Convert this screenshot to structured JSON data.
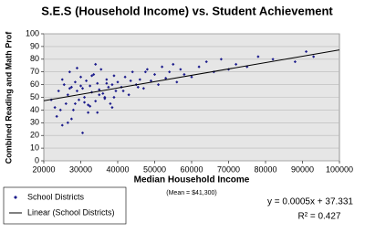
{
  "chart_data": {
    "type": "scatter",
    "title": "S.E.S (Household Income) vs. Student Achievement",
    "x_label": "Median Household Income",
    "y_label": "Combined Reading and Math Prof",
    "note": "(Mean = $41,300)",
    "annotations": [
      "y = 0.0005x + 37.331",
      "R² = 0.427"
    ],
    "xlim": [
      20000,
      100000
    ],
    "xticks": [
      20000,
      30000,
      40000,
      50000,
      60000,
      70000,
      80000,
      90000,
      100000
    ],
    "ylim": [
      0,
      100
    ],
    "yticks": [
      0,
      10,
      20,
      30,
      40,
      50,
      60,
      70,
      80,
      90,
      100
    ],
    "grid": true,
    "legend": "bottom-left",
    "series": [
      {
        "name": "School Districts",
        "color": "#1c1c8c",
        "kind": "points",
        "x": [
          22000,
          23500,
          24000,
          25000,
          25500,
          26000,
          26500,
          27000,
          27500,
          28000,
          28500,
          29000,
          29500,
          30000,
          30500,
          31000,
          31500,
          32000,
          32500,
          33000,
          33500,
          34000,
          34500,
          35000,
          35500,
          36000,
          36500,
          37000,
          37500,
          38000,
          38500,
          39000,
          39500,
          40000,
          41000,
          42000,
          43000,
          44000,
          45000,
          46000,
          47000,
          48000,
          49000,
          50000,
          51000,
          52000,
          53000,
          54000,
          55000,
          56000,
          57000,
          58000,
          60000,
          62000,
          64000,
          66000,
          68000,
          70000,
          72000,
          75000,
          78000,
          82000,
          88000,
          91000,
          93000,
          24500,
          26500,
          28500,
          30500,
          32500,
          34500,
          36500,
          38500,
          25000,
          27000,
          29000,
          31000,
          33000,
          35000,
          37000,
          39000,
          41500,
          43500,
          45500,
          47500,
          30000,
          32000,
          34000,
          23000,
          27500
        ],
        "values": [
          48,
          35,
          55,
          28,
          60,
          45,
          52,
          70,
          58,
          40,
          62,
          55,
          48,
          66,
          57,
          50,
          63,
          38,
          59,
          54,
          68,
          47,
          61,
          56,
          72,
          53,
          49,
          64,
          58,
          45,
          60,
          67,
          55,
          62,
          58,
          66,
          52,
          70,
          60,
          64,
          57,
          72,
          63,
          68,
          60,
          74,
          65,
          70,
          76,
          62,
          72,
          68,
          66,
          74,
          78,
          70,
          80,
          72,
          76,
          74,
          82,
          80,
          78,
          86,
          82,
          40,
          30,
          45,
          22,
          43,
          38,
          50,
          42,
          64,
          57,
          73,
          46,
          67,
          52,
          61,
          50,
          55,
          63,
          58,
          70,
          59,
          44,
          76,
          42,
          33
        ]
      },
      {
        "name": "Linear (School Districts)",
        "color": "#000000",
        "kind": "line",
        "x": [
          20000,
          100000
        ],
        "values": [
          47.331,
          87.331
        ]
      }
    ]
  }
}
